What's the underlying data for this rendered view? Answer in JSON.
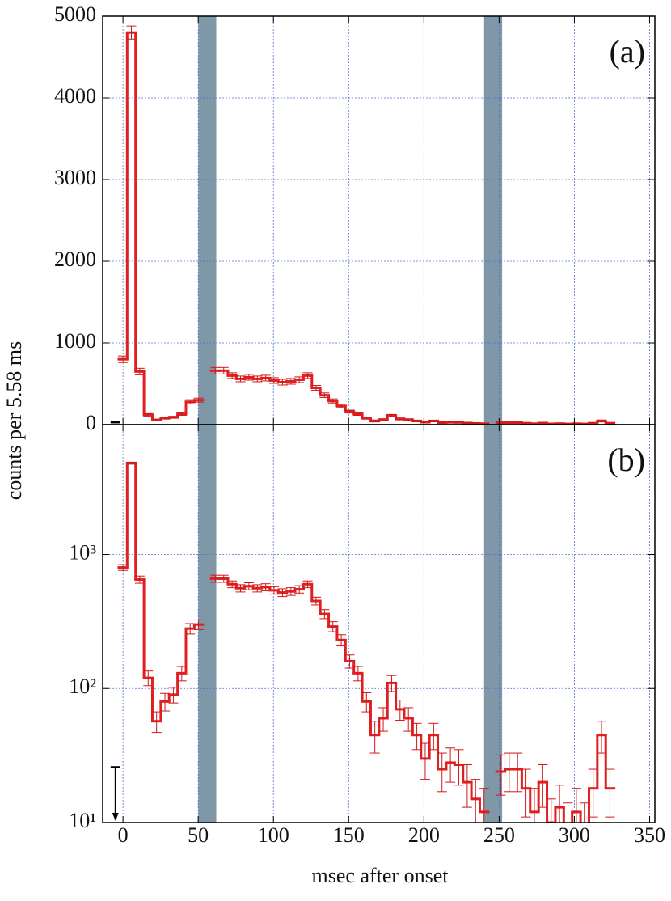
{
  "chart_data": [
    {
      "type": "histogram",
      "annotation": "(a)",
      "ylabel": "counts per 5.58 ms",
      "log_y": false,
      "grid": true,
      "show_xtick_labels": false,
      "color": "#e02020",
      "error_color": "#d01818",
      "band_color": "#7f97a6",
      "xlim": [
        -13.5,
        353.5
      ],
      "xticks": [
        0,
        50,
        100,
        150,
        200,
        250,
        300,
        350
      ],
      "ylim": [
        0,
        5000
      ],
      "yticks": [
        0,
        1000,
        2000,
        3000,
        4000,
        5000
      ],
      "bands": [
        [
          50,
          62
        ],
        [
          240,
          252
        ]
      ],
      "upper_limit": {
        "x": -5,
        "value": 30
      },
      "bins": [
        -2.79,
        2.79,
        8.37,
        13.95,
        19.53,
        25.11,
        30.69,
        36.27,
        41.85,
        47.43,
        53.01,
        58.59,
        64.17,
        69.75,
        75.33,
        80.91,
        86.49,
        92.07,
        97.65,
        103.23,
        108.81,
        114.39,
        119.97,
        125.55,
        131.13,
        136.71,
        142.29,
        147.87,
        153.45,
        159.03,
        164.61,
        170.19,
        175.77,
        181.35,
        186.93,
        192.51,
        198.09,
        203.67,
        209.25,
        214.83,
        220.41,
        225.99,
        231.57,
        237.15,
        242.73,
        248.31,
        253.89,
        259.47,
        265.05,
        270.63,
        276.21,
        281.79,
        287.37,
        292.95,
        298.53,
        304.11,
        309.69,
        315.27,
        320.85,
        326.43
      ],
      "values": [
        800,
        4800,
        650,
        120,
        57,
        80,
        90,
        130,
        280,
        300,
        null,
        660,
        660,
        600,
        560,
        580,
        560,
        570,
        540,
        520,
        530,
        550,
        600,
        450,
        360,
        290,
        230,
        160,
        130,
        80,
        45,
        60,
        110,
        70,
        60,
        45,
        30,
        45,
        25,
        28,
        27,
        20,
        15,
        12,
        null,
        24,
        25,
        25,
        18,
        12,
        20,
        10,
        13,
        9,
        12,
        9,
        18,
        45,
        18
      ],
      "errors": [
        40,
        80,
        40,
        15,
        10,
        12,
        12,
        16,
        25,
        25,
        null,
        40,
        40,
        35,
        35,
        35,
        35,
        35,
        35,
        35,
        35,
        35,
        35,
        30,
        28,
        25,
        22,
        18,
        16,
        13,
        12,
        12,
        15,
        12,
        12,
        10,
        9,
        10,
        8,
        8,
        8,
        7,
        6,
        6,
        null,
        8,
        8,
        8,
        7,
        6,
        7,
        5,
        6,
        5,
        6,
        5,
        7,
        12,
        7
      ]
    },
    {
      "type": "histogram",
      "annotation": "(b)",
      "xlabel": "msec after onset",
      "log_y": true,
      "grid": true,
      "show_xtick_labels": true,
      "color": "#e02020",
      "error_color": "#d01818",
      "band_color": "#7f97a6",
      "xlim": [
        -13.5,
        353.5
      ],
      "xticks": [
        0,
        50,
        100,
        150,
        200,
        250,
        300,
        350
      ],
      "ylim": [
        10,
        9300
      ],
      "yticks": [
        {
          "value": 10,
          "label": "10¹"
        },
        {
          "value": 100,
          "label": "10²"
        },
        {
          "value": 1000,
          "label": "10³"
        }
      ],
      "bands": [
        [
          50,
          62
        ],
        [
          240,
          252
        ]
      ],
      "upper_limit": {
        "x": -5,
        "value": 26
      },
      "bins": [
        -2.79,
        2.79,
        8.37,
        13.95,
        19.53,
        25.11,
        30.69,
        36.27,
        41.85,
        47.43,
        53.01,
        58.59,
        64.17,
        69.75,
        75.33,
        80.91,
        86.49,
        92.07,
        97.65,
        103.23,
        108.81,
        114.39,
        119.97,
        125.55,
        131.13,
        136.71,
        142.29,
        147.87,
        153.45,
        159.03,
        164.61,
        170.19,
        175.77,
        181.35,
        186.93,
        192.51,
        198.09,
        203.67,
        209.25,
        214.83,
        220.41,
        225.99,
        231.57,
        237.15,
        242.73,
        248.31,
        253.89,
        259.47,
        265.05,
        270.63,
        276.21,
        281.79,
        287.37,
        292.95,
        298.53,
        304.11,
        309.69,
        315.27,
        320.85,
        326.43
      ],
      "values": [
        800,
        4800,
        650,
        120,
        57,
        80,
        90,
        130,
        280,
        300,
        null,
        660,
        660,
        600,
        560,
        580,
        560,
        570,
        540,
        520,
        530,
        550,
        600,
        450,
        360,
        290,
        230,
        160,
        130,
        80,
        45,
        60,
        110,
        70,
        60,
        45,
        30,
        45,
        25,
        28,
        27,
        20,
        15,
        12,
        null,
        24,
        25,
        25,
        18,
        12,
        20,
        10,
        13,
        9,
        12,
        9,
        18,
        45,
        18
      ],
      "errors": [
        40,
        80,
        40,
        15,
        10,
        12,
        12,
        16,
        25,
        25,
        null,
        40,
        40,
        35,
        35,
        35,
        35,
        35,
        35,
        35,
        35,
        35,
        35,
        30,
        28,
        25,
        22,
        18,
        16,
        13,
        12,
        12,
        15,
        12,
        12,
        10,
        9,
        10,
        8,
        8,
        8,
        7,
        6,
        6,
        null,
        8,
        8,
        8,
        7,
        6,
        7,
        5,
        6,
        5,
        6,
        5,
        7,
        12,
        7
      ]
    }
  ]
}
